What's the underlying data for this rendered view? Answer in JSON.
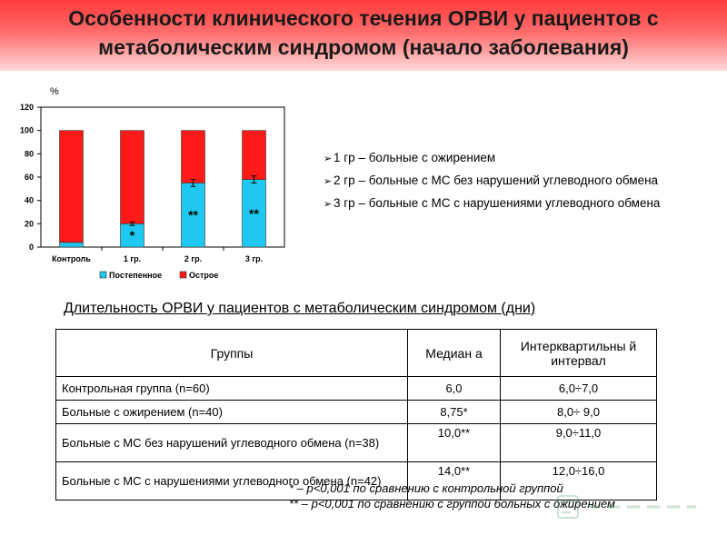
{
  "title": "Особенности клинического течения ОРВИ у пациентов с метаболическим синдромом (начало заболевания)",
  "chart_data": {
    "type": "bar",
    "stacked": true,
    "ylabel": "%",
    "ylim": [
      0,
      120
    ],
    "yticks": [
      0,
      20,
      40,
      60,
      80,
      100,
      120
    ],
    "categories": [
      "Контроль",
      "1 гр.",
      "2 гр.",
      "3 гр."
    ],
    "series": [
      {
        "name": "Постепенное",
        "color": "#1ec8f0",
        "values": [
          4,
          20,
          55,
          58
        ]
      },
      {
        "name": "Острое",
        "color": "#ff1a1a",
        "values": [
          96,
          80,
          45,
          42
        ]
      }
    ],
    "error_bars": [
      0,
      1.5,
      3,
      3
    ],
    "markers": [
      "",
      "*",
      "**",
      "**"
    ],
    "legend_position": "bottom",
    "grid": false
  },
  "groups": [
    "1 гр – больные с ожирением",
    "2 гр – больные с МС без нарушений углеводного обмена",
    "3 гр – больные с МС с нарушениями углеводного обмена"
  ],
  "table": {
    "caption": "Длительность ОРВИ у пациентов с метаболическим синдромом (дни)",
    "headers": [
      "Группы",
      "Медиан а",
      "Интерквартильны й интервал"
    ],
    "rows": [
      [
        "Контрольная группа (n=60)",
        "6,0",
        "6,0÷7,0"
      ],
      [
        "Больные с ожирением (n=40)",
        "8,75*",
        "8,0÷ 9,0"
      ],
      [
        "Больные с МС без нарушений углеводного обмена (n=38)",
        "10,0**",
        "9,0÷11,0"
      ],
      [
        "Больные с МС с нарушениями углеводного обмена (n=42)",
        "14,0**",
        "12,0÷16,0"
      ]
    ]
  },
  "footnotes": [
    "* – p<0,001 по сравнению с контрольной группой",
    "** – p<0,001 по сравнению с группой больных с ожирением"
  ],
  "colors": {
    "banner": "#ff3a3a",
    "gradual": "#1ec8f0",
    "acute": "#ff1a1a"
  }
}
